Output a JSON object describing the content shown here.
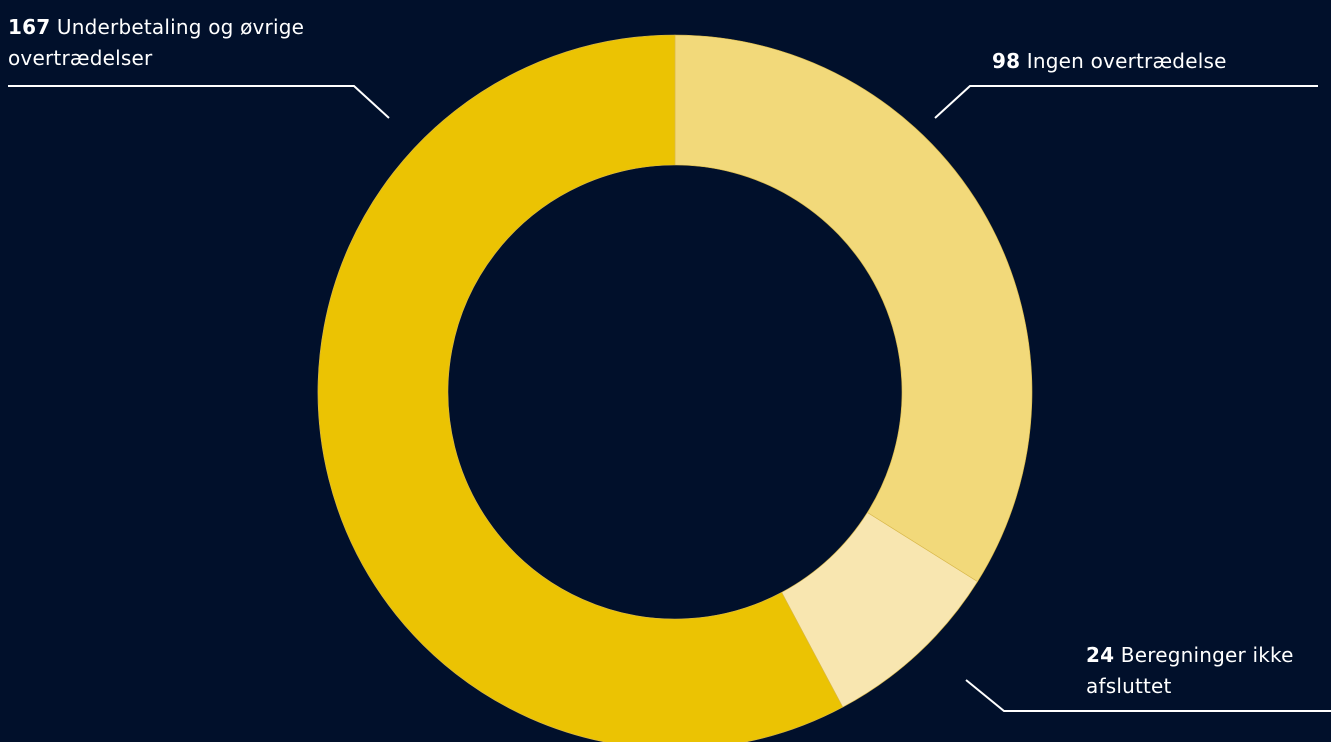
{
  "chart_data": {
    "type": "pie",
    "variant": "donut",
    "slices": [
      {
        "label": "Ingen overtrædelse",
        "value": 98,
        "color": "#f2d97a"
      },
      {
        "label": "Beregninger ikke afsluttet",
        "value": 24,
        "color": "#f8e6b0"
      },
      {
        "label": "Underbetaling og øvrige overtrædelser",
        "value": 167,
        "color": "#ebc303"
      }
    ]
  },
  "labels": {
    "underbetaling": {
      "number": "167",
      "line1": "Underbetaling og øvrige",
      "line2": "overtrædelser"
    },
    "ingen": {
      "number": "98",
      "line1": "Ingen overtrædelse"
    },
    "beregninger": {
      "number": "24",
      "line1": "Beregninger ikke",
      "line2": "afsluttet"
    }
  },
  "colors": {
    "background": "#01102b",
    "text": "#ffffff",
    "leader": "#ffffff"
  }
}
